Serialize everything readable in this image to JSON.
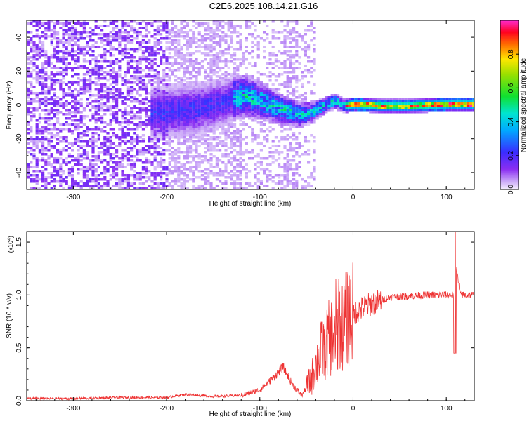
{
  "title": "C2E6.2025.108.14.21.G16",
  "colors": {
    "snr_line": "#ee3333",
    "spectrum_low": "#7b1cf2",
    "spectrum_faint": "#cdb6f6"
  },
  "chart_data": [
    {
      "type": "heatmap",
      "xlabel": "Height of straight line (km)",
      "ylabel": "Frequency (Hz)",
      "xlim": [
        -350,
        130
      ],
      "ylim": [
        -50,
        50
      ],
      "xticks": [
        -300,
        -200,
        -100,
        0,
        100
      ],
      "yticks": [
        -40,
        -20,
        0,
        20,
        40
      ],
      "colorbar": {
        "label": "Normalized spectral amplitude",
        "range": [
          0,
          1
        ],
        "ticks": [
          "0.0",
          "0.2",
          "0.4",
          "0.6",
          "0.8"
        ],
        "colormap": "rainbow (violet → blue → cyan → green → yellow → red → magenta)"
      },
      "ridge": {
        "description": "frequency trace of peak amplitude vs height",
        "x": [
          -210,
          -170,
          -140,
          -120,
          -100,
          -80,
          -60,
          -45,
          -30,
          -20,
          -10,
          0,
          30,
          60,
          100,
          130
        ],
        "freq_center": [
          -4,
          -2,
          2,
          6,
          3,
          -2,
          -5,
          -4,
          1,
          3,
          0,
          1,
          0,
          0,
          1,
          1
        ],
        "freq_halfwidth": [
          10,
          10,
          9,
          8,
          7,
          6,
          5,
          4,
          3,
          3,
          2.5,
          2.5,
          2.5,
          2.5,
          2.5,
          2.5
        ]
      }
    },
    {
      "type": "line",
      "xlabel": "Height of straight line (km)",
      "ylabel": "SNR (10 * v/v)",
      "y_scale_label": "(x10",
      "y_scale_exp": "4",
      "xlim": [
        -350,
        130
      ],
      "ylim": [
        0,
        1.6
      ],
      "xticks": [
        -300,
        -200,
        -100,
        0,
        100
      ],
      "yticks": [
        "0.0",
        "0.5",
        "1.0",
        "1.5"
      ],
      "series": [
        {
          "x": [
            -350,
            -300,
            -250,
            -200,
            -180,
            -150,
            -120,
            -100,
            -85,
            -75,
            -65,
            -55,
            -45,
            -35,
            -25,
            -15,
            -5,
            5,
            20,
            40,
            60,
            80,
            100,
            108,
            110,
            115,
            130
          ],
          "y": [
            0.02,
            0.02,
            0.03,
            0.03,
            0.06,
            0.04,
            0.05,
            0.1,
            0.22,
            0.32,
            0.15,
            0.05,
            0.2,
            0.45,
            0.6,
            0.65,
            0.8,
            0.85,
            0.92,
            0.98,
            0.99,
            1.0,
            1.0,
            1.0,
            1.3,
            1.0,
            1.0
          ]
        }
      ]
    }
  ]
}
